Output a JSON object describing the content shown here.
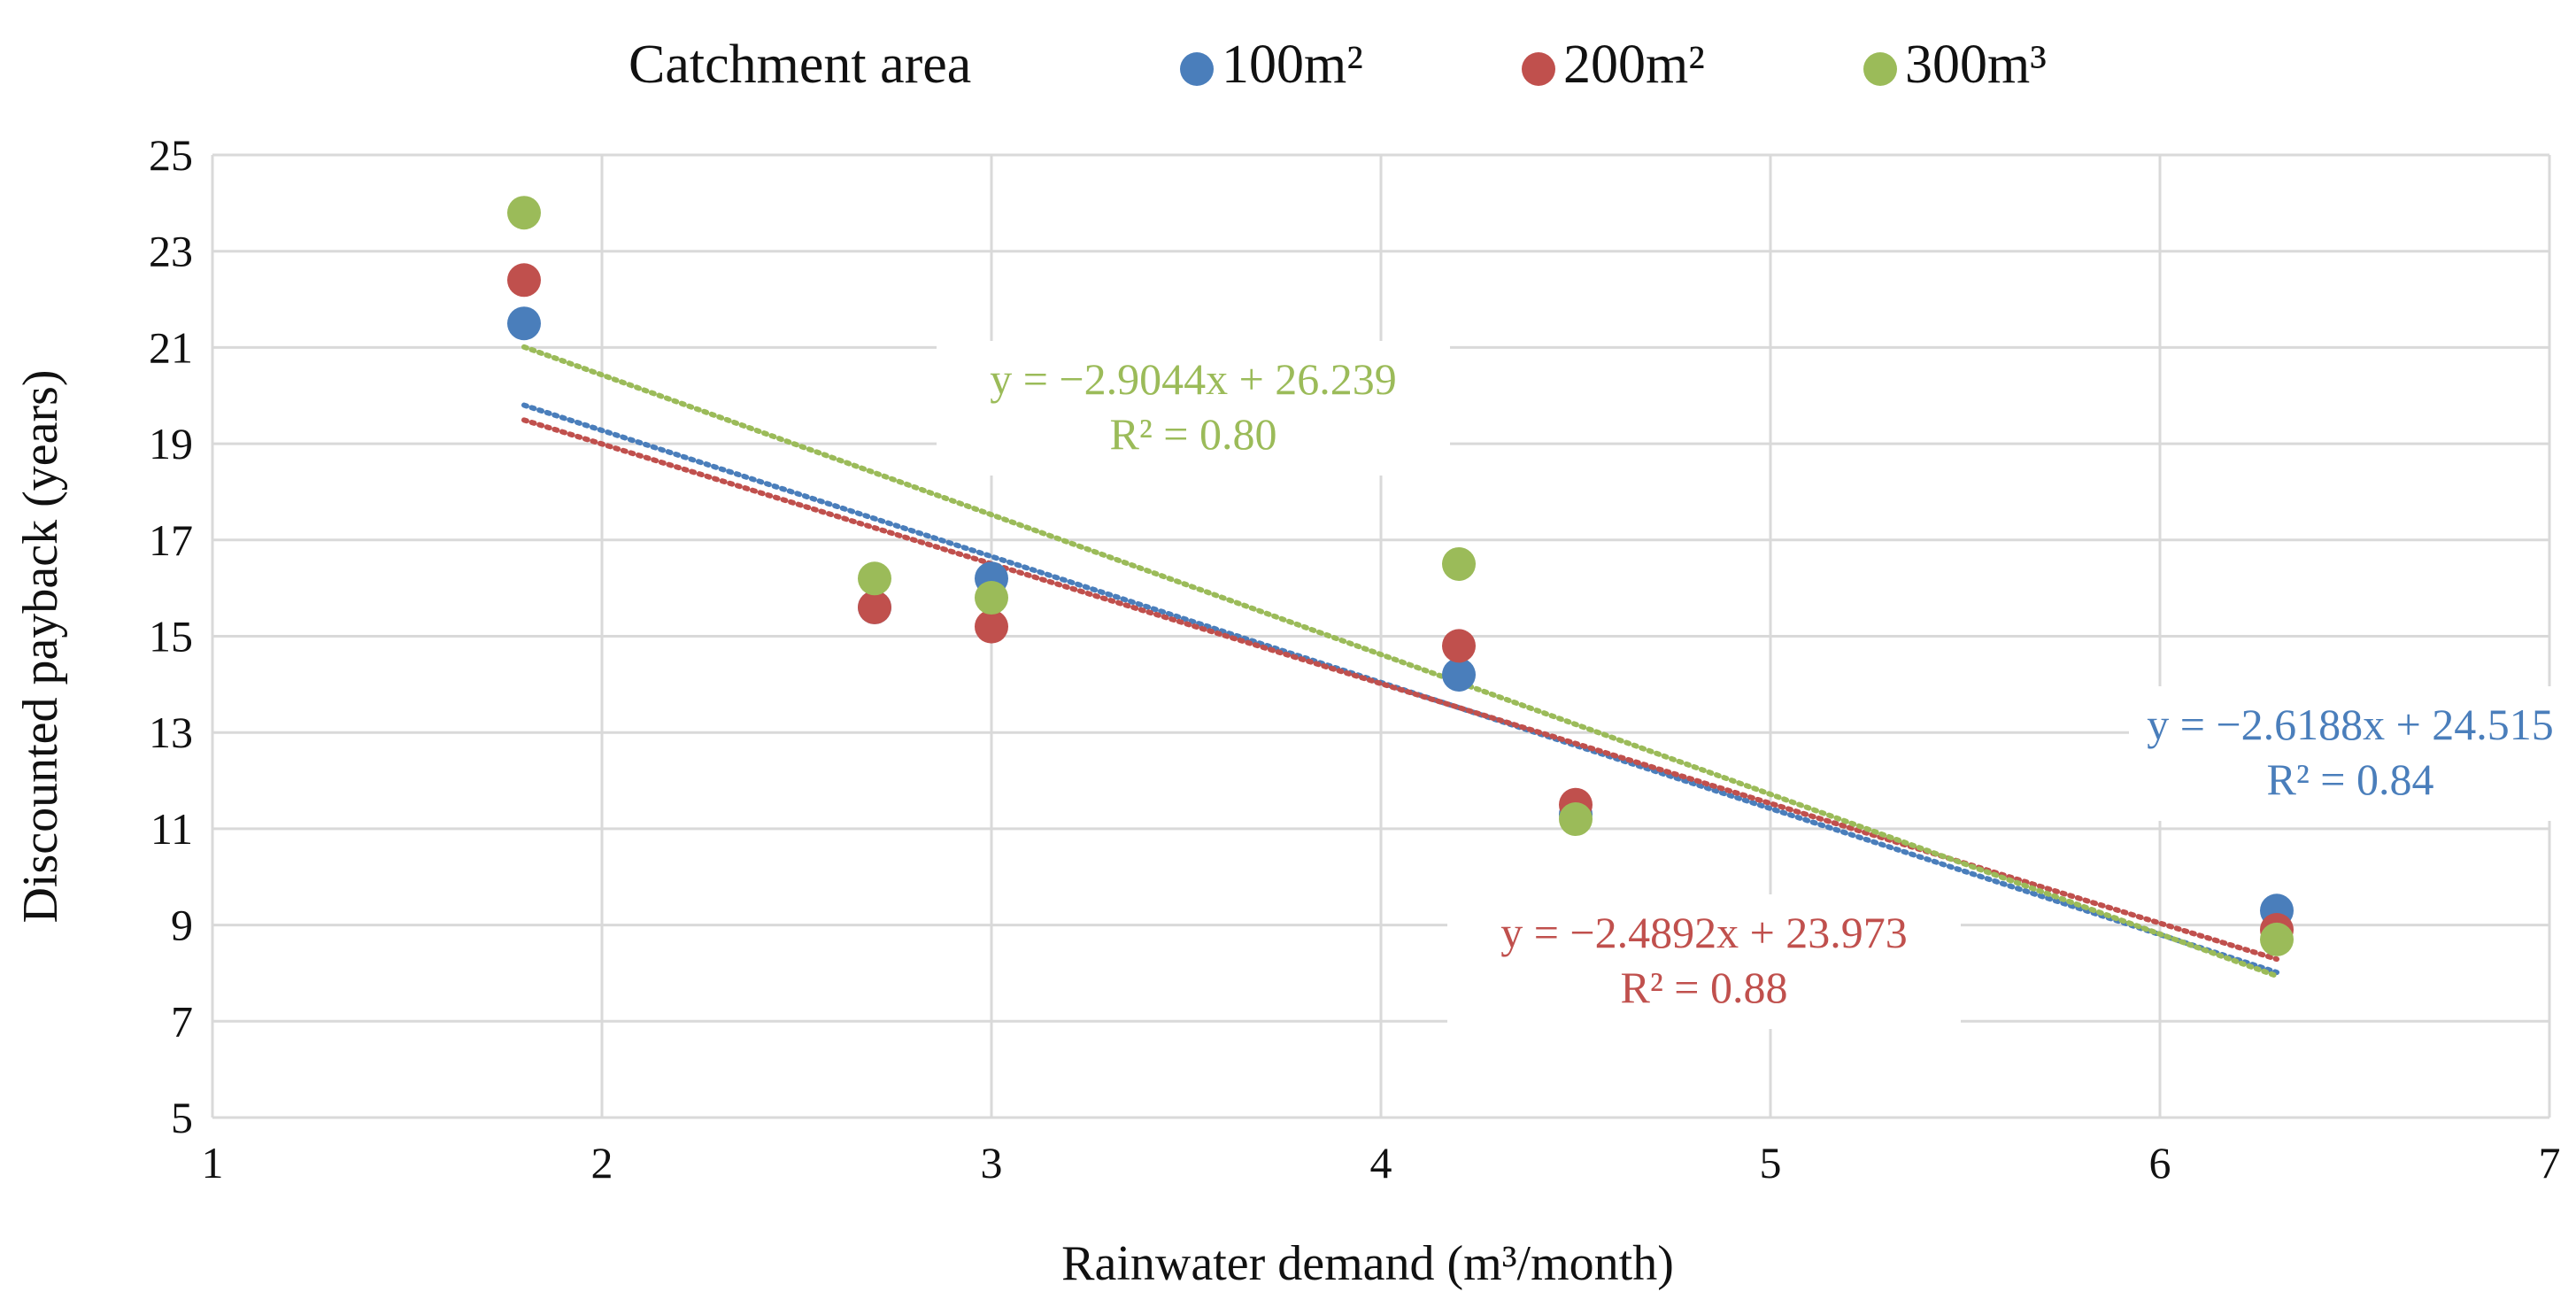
{
  "chart_data": {
    "type": "scatter",
    "xlabel": "Rainwater demand (m³/month)",
    "ylabel": "Discounted payback  (years)",
    "xlim": [
      1,
      7
    ],
    "ylim": [
      5,
      25
    ],
    "xticks": [
      1,
      2,
      3,
      4,
      5,
      6,
      7
    ],
    "yticks": [
      5,
      7,
      9,
      11,
      13,
      15,
      17,
      19,
      21,
      23,
      25
    ],
    "grid": true,
    "legend": {
      "title": "Catchment area",
      "placement": "top",
      "entries": [
        "100m²",
        "200m²",
        "300m³"
      ]
    },
    "series": [
      {
        "name": "100m²",
        "color": "#4a7ebb",
        "x": [
          1.8,
          2.7,
          3.0,
          4.2,
          4.5,
          6.3
        ],
        "y": [
          21.5,
          15.6,
          16.2,
          14.2,
          11.3,
          9.3
        ],
        "trendline": {
          "slope": -2.6188,
          "intercept": 24.515,
          "equation": "y = −2.6188x + 24.515",
          "r2": "R² = 0.84",
          "x_range": [
            1.8,
            6.3
          ]
        }
      },
      {
        "name": "200m²",
        "color": "#c0504d",
        "x": [
          1.8,
          2.7,
          3.0,
          4.2,
          4.5,
          6.3
        ],
        "y": [
          22.4,
          15.6,
          15.2,
          14.8,
          11.5,
          8.9
        ],
        "trendline": {
          "slope": -2.4892,
          "intercept": 23.973,
          "equation": "y = −2.4892x + 23.973",
          "r2": "R² = 0.88",
          "x_range": [
            1.8,
            6.3
          ]
        }
      },
      {
        "name": "300m³",
        "color": "#9bbb59",
        "x": [
          1.8,
          2.7,
          3.0,
          4.2,
          4.5,
          6.3
        ],
        "y": [
          23.8,
          16.2,
          15.8,
          16.5,
          11.2,
          8.7
        ],
        "trendline": {
          "slope": -2.9044,
          "intercept": 26.239,
          "equation": "y = −2.9044x + 26.239",
          "r2": "R² = 0.80",
          "x_range": [
            1.8,
            6.3
          ]
        }
      }
    ]
  }
}
